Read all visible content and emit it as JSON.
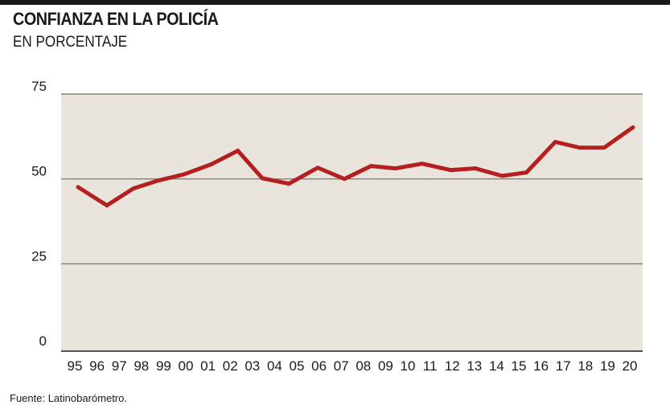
{
  "chart_data": {
    "type": "line",
    "title": "CONFIANZA EN LA POLICÍA",
    "subtitle": "EN PORCENTAJE",
    "source": "Fuente: Latinobarómetro.",
    "xlabel": "",
    "ylabel": "",
    "ylim": [
      0,
      75
    ],
    "xlim": [
      1995,
      2020
    ],
    "y_ticks": [
      0,
      25,
      50,
      75
    ],
    "y_tick_labels": [
      "0",
      "25",
      "50",
      "75"
    ],
    "x_tick_labels": [
      "95",
      "96",
      "97",
      "98",
      "99",
      "00",
      "01",
      "02",
      "03",
      "04",
      "05",
      "06",
      "07",
      "08",
      "09",
      "10",
      "11",
      "12",
      "13",
      "14",
      "15",
      "16",
      "17",
      "18",
      "19",
      "20"
    ],
    "grid": true,
    "series": [
      {
        "name": "Confianza en la policía",
        "color": "#b3201f",
        "x": [
          1995,
          1996.3,
          1997.5,
          1998.6,
          1999.8,
          2001,
          2002.2,
          2003.3,
          2004.5,
          2005.8,
          2007,
          2008.2,
          2009.3,
          2010.5,
          2011.8,
          2012.9,
          2014.1,
          2015.2,
          2016.5,
          2017.6,
          2018.7,
          2020
        ],
        "values": [
          47.6,
          42.2,
          47.2,
          49.5,
          51.4,
          54.3,
          58.3,
          50.2,
          48.6,
          53.3,
          50.0,
          53.8,
          53.1,
          54.5,
          52.6,
          53.1,
          50.9,
          51.9,
          60.9,
          59.2,
          59.2,
          65.2
        ]
      }
    ],
    "colors": {
      "plot_bg": "#e9e5dc",
      "grid": "#6f6a62",
      "line": "#b3201f"
    }
  }
}
